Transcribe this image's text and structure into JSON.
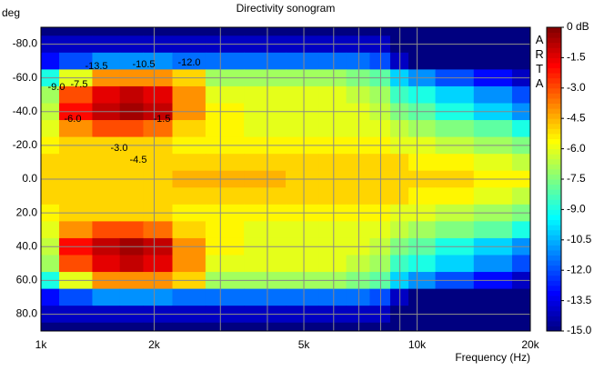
{
  "chart_data": {
    "type": "heatmap",
    "title": "Directivity sonogram",
    "y_label": "deg",
    "x_label": "Frequency (Hz)",
    "watermark": "ARTA",
    "x_scale": "log",
    "xlim": [
      1000,
      20000
    ],
    "xticks": [
      {
        "value": 1000,
        "label": "1k"
      },
      {
        "value": 2000,
        "label": "2k"
      },
      {
        "value": 5000,
        "label": "5k"
      },
      {
        "value": 10000,
        "label": "10k"
      },
      {
        "value": 20000,
        "label": "20k"
      }
    ],
    "xgrid_minor": [
      3000,
      4000,
      6000,
      7000,
      8000,
      9000
    ],
    "ylim": [
      -90,
      90
    ],
    "yticks": [
      {
        "value": -80,
        "label": "-80.0"
      },
      {
        "value": -60,
        "label": "-60.0"
      },
      {
        "value": -40,
        "label": "-40.0"
      },
      {
        "value": -20,
        "label": "-20.0"
      },
      {
        "value": 0,
        "label": "0.0"
      },
      {
        "value": 20,
        "label": "20.0"
      },
      {
        "value": 40,
        "label": "40.0"
      },
      {
        "value": 60,
        "label": "60.0"
      },
      {
        "value": 80,
        "label": "80.0"
      }
    ],
    "grid": true,
    "colormap": "jet",
    "clim": [
      -15,
      0
    ],
    "cticks": [
      {
        "value": 0,
        "label": "0 dB"
      },
      {
        "value": -1.5,
        "label": "-1.5"
      },
      {
        "value": -3,
        "label": "-3.0"
      },
      {
        "value": -4.5,
        "label": "-4.5"
      },
      {
        "value": -6,
        "label": "-6.0"
      },
      {
        "value": -7.5,
        "label": "-7.5"
      },
      {
        "value": -9,
        "label": "-9.0"
      },
      {
        "value": -10.5,
        "label": "-10.5"
      },
      {
        "value": -12,
        "label": "-12.0"
      },
      {
        "value": -13.5,
        "label": "-13.5"
      },
      {
        "value": -15,
        "label": "-15.0"
      }
    ],
    "annotations": [
      "-13.5",
      "-10.5",
      "-12.0",
      "-9.0",
      "-7.5",
      "-6.0",
      "-1.5",
      "-3.0",
      "-4.5"
    ],
    "x": [
      1000,
      1250,
      1500,
      1750,
      2000,
      2500,
      3000,
      4000,
      5000,
      6000,
      7000,
      8000,
      9000,
      10000,
      12500,
      16000,
      20000
    ],
    "y": [
      -90,
      -80,
      -70,
      -60,
      -50,
      -40,
      -30,
      -20,
      -10,
      0,
      10,
      20,
      30,
      40,
      50,
      60,
      70,
      80,
      90
    ],
    "z": [
      [
        -15,
        -15,
        -15,
        -15,
        -15,
        -15,
        -15,
        -15,
        -15,
        -15,
        -15,
        -15,
        -15,
        -15,
        -15,
        -15,
        -15
      ],
      [
        -14,
        -14,
        -14,
        -14,
        -14,
        -14,
        -14,
        -14,
        -14,
        -14,
        -14,
        -14,
        -15,
        -15,
        -15,
        -15,
        -15
      ],
      [
        -13,
        -12,
        -11,
        -11,
        -11,
        -11.5,
        -11.5,
        -11.5,
        -11.5,
        -11.5,
        -11.5,
        -12,
        -14,
        -15,
        -15,
        -15,
        -15
      ],
      [
        -9,
        -6,
        -4,
        -4,
        -4,
        -5,
        -7,
        -7,
        -7,
        -7,
        -7.5,
        -8,
        -10,
        -11,
        -12,
        -13,
        -14
      ],
      [
        -7,
        -3,
        -1.5,
        -1,
        -1.5,
        -4,
        -6,
        -6,
        -6,
        -6,
        -6.5,
        -7,
        -8.5,
        -9,
        -10,
        -11,
        -12
      ],
      [
        -6.5,
        -2,
        -1,
        -0.5,
        -1,
        -4,
        -5.5,
        -6,
        -6,
        -6,
        -6,
        -6.5,
        -7.5,
        -8,
        -9,
        -10,
        -11
      ],
      [
        -6,
        -4,
        -3,
        -3,
        -3.5,
        -5,
        -5.5,
        -6,
        -6,
        -6,
        -6,
        -6,
        -6.5,
        -7,
        -7.5,
        -8,
        -9
      ],
      [
        -5.5,
        -5,
        -5,
        -5,
        -5,
        -5.5,
        -5.5,
        -5.5,
        -5.5,
        -5.5,
        -5.5,
        -5.5,
        -6,
        -6,
        -6.5,
        -7,
        -7.5
      ],
      [
        -5,
        -5,
        -5,
        -5,
        -5,
        -5,
        -5,
        -5,
        -5,
        -5,
        -5,
        -5,
        -5,
        -5.5,
        -5.5,
        -6,
        -6.5
      ],
      [
        -5,
        -5,
        -5,
        -5,
        -5,
        -4.5,
        -4.5,
        -4.5,
        -5,
        -5,
        -5,
        -5,
        -5,
        -5,
        -5,
        -5.5,
        -5.5
      ],
      [
        -5,
        -5,
        -5,
        -5,
        -5,
        -5,
        -5,
        -5,
        -5,
        -5,
        -5,
        -5,
        -5,
        -5.5,
        -5.5,
        -6,
        -6.5
      ],
      [
        -5.5,
        -5,
        -5,
        -5,
        -5,
        -5.5,
        -5.5,
        -5.5,
        -5.5,
        -5.5,
        -5.5,
        -5.5,
        -6,
        -6,
        -6.5,
        -7,
        -7.5
      ],
      [
        -6,
        -4,
        -3,
        -3,
        -3.5,
        -5,
        -5.5,
        -6,
        -6,
        -6,
        -6,
        -6,
        -6.5,
        -7,
        -7.5,
        -8,
        -9
      ],
      [
        -6.5,
        -2,
        -1,
        -0.5,
        -1,
        -4,
        -5.5,
        -6,
        -6,
        -6,
        -6,
        -6.5,
        -7.5,
        -8,
        -9,
        -10,
        -11
      ],
      [
        -7,
        -3,
        -1.5,
        -1,
        -1.5,
        -4,
        -6,
        -6,
        -6,
        -6,
        -6.5,
        -7,
        -8.5,
        -9,
        -10,
        -11,
        -12
      ],
      [
        -9,
        -6,
        -4,
        -4,
        -4,
        -5,
        -7,
        -7,
        -7,
        -7,
        -7.5,
        -8,
        -10,
        -11,
        -12,
        -13,
        -14
      ],
      [
        -13,
        -12,
        -11,
        -11,
        -11,
        -11.5,
        -11.5,
        -11.5,
        -11.5,
        -11.5,
        -11.5,
        -12,
        -14,
        -15,
        -15,
        -15,
        -15
      ],
      [
        -14,
        -14,
        -14,
        -14,
        -14,
        -14,
        -14,
        -14,
        -14,
        -14,
        -14,
        -14,
        -15,
        -15,
        -15,
        -15,
        -15
      ],
      [
        -15,
        -15,
        -15,
        -15,
        -15,
        -15,
        -15,
        -15,
        -15,
        -15,
        -15,
        -15,
        -15,
        -15,
        -15,
        -15,
        -15
      ]
    ]
  }
}
